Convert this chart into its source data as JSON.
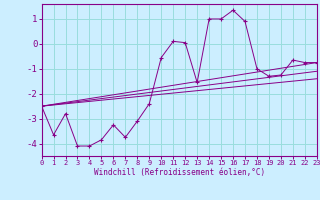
{
  "xlabel": "Windchill (Refroidissement éolien,°C)",
  "background_color": "#cceeff",
  "grid_color": "#99dddd",
  "line_color": "#880088",
  "xlim": [
    0,
    23
  ],
  "ylim": [
    -4.5,
    1.6
  ],
  "yticks": [
    1,
    0,
    -1,
    -2,
    -3,
    -4
  ],
  "xticks": [
    0,
    1,
    2,
    3,
    4,
    5,
    6,
    7,
    8,
    9,
    10,
    11,
    12,
    13,
    14,
    15,
    16,
    17,
    18,
    19,
    20,
    21,
    22,
    23
  ],
  "main_series": [
    [
      0,
      -2.5
    ],
    [
      1,
      -3.65
    ],
    [
      2,
      -2.8
    ],
    [
      3,
      -4.1
    ],
    [
      4,
      -4.1
    ],
    [
      5,
      -3.85
    ],
    [
      6,
      -3.25
    ],
    [
      7,
      -3.75
    ],
    [
      8,
      -3.1
    ],
    [
      9,
      -2.4
    ],
    [
      10,
      -0.55
    ],
    [
      11,
      0.1
    ],
    [
      12,
      0.05
    ],
    [
      13,
      -1.55
    ],
    [
      14,
      1.0
    ],
    [
      15,
      1.0
    ],
    [
      16,
      1.35
    ],
    [
      17,
      0.9
    ],
    [
      18,
      -1.0
    ],
    [
      19,
      -1.3
    ],
    [
      20,
      -1.25
    ],
    [
      21,
      -0.65
    ],
    [
      22,
      -0.75
    ],
    [
      23,
      -0.75
    ]
  ],
  "diag_lines": [
    [
      [
        0,
        -2.5
      ],
      [
        23,
        -0.75
      ]
    ],
    [
      [
        0,
        -2.5
      ],
      [
        23,
        -1.1
      ]
    ],
    [
      [
        0,
        -2.5
      ],
      [
        23,
        -1.4
      ]
    ]
  ]
}
